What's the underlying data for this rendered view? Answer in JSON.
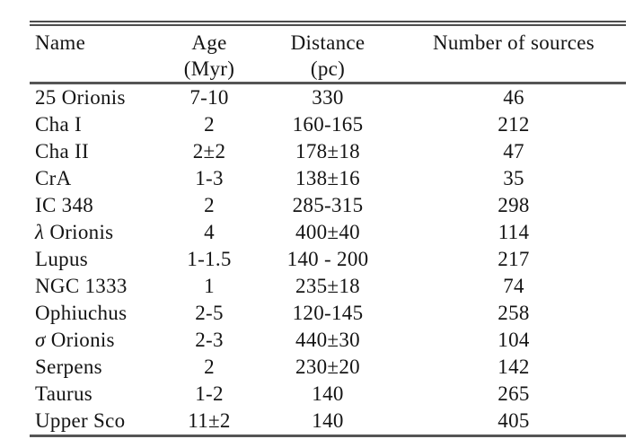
{
  "table": {
    "headers": [
      {
        "label": "Name",
        "sublabel": ""
      },
      {
        "label": "Age",
        "sublabel": "(Myr)"
      },
      {
        "label": "Distance",
        "sublabel": "(pc)"
      },
      {
        "label": "Number of sources",
        "sublabel": ""
      }
    ],
    "rows": [
      [
        "25 Orionis",
        "7-10",
        "330",
        "46"
      ],
      [
        "Cha I",
        "2",
        "160-165",
        "212"
      ],
      [
        "Cha II",
        "2±2",
        "178±18",
        "47"
      ],
      [
        "CrA",
        "1-3",
        "138±16",
        "35"
      ],
      [
        "IC 348",
        "2",
        "285-315",
        "298"
      ],
      [
        "λ Orionis",
        "4",
        "400±40",
        "114"
      ],
      [
        "Lupus",
        "1-1.5",
        "140 - 200",
        "217"
      ],
      [
        "NGC 1333",
        "1",
        "235±18",
        "74"
      ],
      [
        "Ophiuchus",
        "2-5",
        "120-145",
        "258"
      ],
      [
        "σ Orionis",
        "2-3",
        "440±30",
        "104"
      ],
      [
        "Serpens",
        "2",
        "230±20",
        "142"
      ],
      [
        "Taurus",
        "1-2",
        "140",
        "265"
      ],
      [
        "Upper Sco",
        "11±2",
        "140",
        "405"
      ]
    ]
  },
  "colors": {
    "text": "#141414",
    "rule": "#4d4d4d",
    "background": "#ffffff"
  }
}
